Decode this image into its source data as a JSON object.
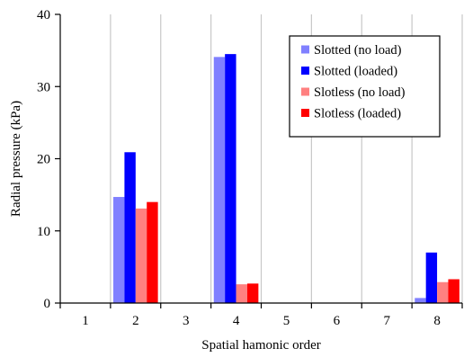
{
  "chart_data": {
    "type": "bar",
    "title": "",
    "xlabel": "Spatial hamonic order",
    "ylabel": "Radial pressure (kPa)",
    "categories": [
      "1",
      "2",
      "3",
      "4",
      "5",
      "6",
      "7",
      "8"
    ],
    "ylim": [
      0,
      40
    ],
    "yticks": [
      "0",
      "10",
      "20",
      "30",
      "40"
    ],
    "grid": "vertical",
    "legend_position": "top-right",
    "series": [
      {
        "name": "Slotted (no load)",
        "color": "#8080ff",
        "values": [
          0,
          14.7,
          0,
          34.1,
          0,
          0,
          0,
          0.7
        ]
      },
      {
        "name": "Slotted (loaded)",
        "color": "#0000ff",
        "values": [
          0,
          20.9,
          0,
          34.5,
          0,
          0,
          0,
          7.0
        ]
      },
      {
        "name": "Slotless (no load)",
        "color": "#ff8080",
        "values": [
          0,
          13.1,
          0,
          2.6,
          0,
          0,
          0,
          2.9
        ]
      },
      {
        "name": "Slotless (loaded)",
        "color": "#ff0000",
        "values": [
          0,
          14.0,
          0,
          2.7,
          0,
          0,
          0,
          3.3
        ]
      }
    ]
  }
}
